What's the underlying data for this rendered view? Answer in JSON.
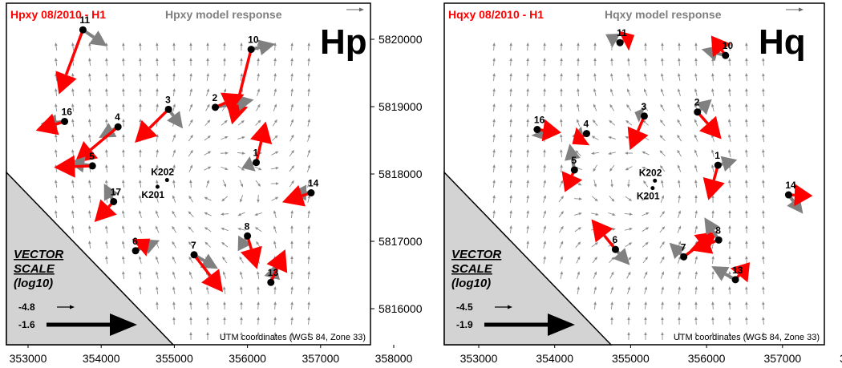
{
  "panels": [
    {
      "title_measured": "Hpxy 08/2010 - H1",
      "title_model": "Hpxy model response",
      "big_label": "Hp",
      "scale_title": [
        "VECTOR",
        "SCALE",
        "(log10)"
      ],
      "scale_small": "-4.8",
      "scale_large": "-1.6",
      "footer": "UTM coordinates (WGS 84, Zone 33)",
      "x_ticks": [
        "353000",
        "354000",
        "355000",
        "356000",
        "357000",
        "358000"
      ],
      "stations": [
        {
          "id": "11",
          "x": 353750,
          "y": 5820140
        },
        {
          "id": "10",
          "x": 356050,
          "y": 5819850
        },
        {
          "id": "16",
          "x": 353500,
          "y": 5818780
        },
        {
          "id": "4",
          "x": 354230,
          "y": 5818700
        },
        {
          "id": "3",
          "x": 354920,
          "y": 5818960
        },
        {
          "id": "2",
          "x": 355560,
          "y": 5818990
        },
        {
          "id": "1",
          "x": 356120,
          "y": 5818170
        },
        {
          "id": "5",
          "x": 353880,
          "y": 5818120
        },
        {
          "id": "17",
          "x": 354170,
          "y": 5817590
        },
        {
          "id": "14",
          "x": 356870,
          "y": 5817720
        },
        {
          "id": "6",
          "x": 354470,
          "y": 5816860
        },
        {
          "id": "7",
          "x": 355270,
          "y": 5816800
        },
        {
          "id": "8",
          "x": 356000,
          "y": 5817080
        },
        {
          "id": "13",
          "x": 356320,
          "y": 5816390
        },
        {
          "id": "K202",
          "x": 354900,
          "y": 5817910
        },
        {
          "id": "K201",
          "x": 354770,
          "y": 5817810
        }
      ]
    },
    {
      "title_measured": "Hqxy 08/2010 - H1",
      "title_model": "Hqxy model response",
      "big_label": "Hq",
      "scale_title": [
        "VECTOR",
        "SCALE",
        "(log10)"
      ],
      "scale_small": "-4.5",
      "scale_large": "-1.9",
      "footer": "UTM coordinates (WGS 84, Zone 33)",
      "x_ticks": [
        "353000",
        "354000",
        "355000",
        "356000",
        "357000",
        "358000"
      ],
      "stations": [
        {
          "id": "11",
          "x": 354860,
          "y": 5819950
        },
        {
          "id": "10",
          "x": 356250,
          "y": 5819760
        },
        {
          "id": "16",
          "x": 353770,
          "y": 5818660
        },
        {
          "id": "4",
          "x": 354420,
          "y": 5818600
        },
        {
          "id": "3",
          "x": 355180,
          "y": 5818860
        },
        {
          "id": "2",
          "x": 355880,
          "y": 5818920
        },
        {
          "id": "1",
          "x": 356150,
          "y": 5818130
        },
        {
          "id": "5",
          "x": 354260,
          "y": 5818060
        },
        {
          "id": "14",
          "x": 357080,
          "y": 5817690
        },
        {
          "id": "6",
          "x": 354800,
          "y": 5816880
        },
        {
          "id": "7",
          "x": 355700,
          "y": 5816770
        },
        {
          "id": "8",
          "x": 356160,
          "y": 5817020
        },
        {
          "id": "13",
          "x": 356380,
          "y": 5816430
        },
        {
          "id": "K202",
          "x": 355320,
          "y": 5817900
        },
        {
          "id": "K201",
          "x": 355290,
          "y": 5817790
        }
      ]
    }
  ],
  "y_ticks": [
    "5820000",
    "5819000",
    "5818000",
    "5817000",
    "5816000"
  ],
  "arrow_sets": {
    "measured": [
      [
        [
          -0.5,
          1.6,
          0.36
        ],
        [
          -0.4,
          1.9,
          0.25
        ],
        [
          -0.6,
          0.3,
          -0.3
        ],
        [
          -0.9,
          0.9,
          0.2
        ],
        [
          -0.7,
          0.7,
          0.8
        ],
        [
          0.6,
          -0.5,
          0.8
        ],
        [
          0.2,
          -0.9,
          -0.8
        ],
        [
          -0.8,
          0.1,
          -0.3
        ],
        [
          -0.4,
          0.7,
          -0.8
        ],
        [
          -0.6,
          0.1,
          0.7
        ],
        [
          0.3,
          -0.4,
          0.4
        ],
        [
          0.6,
          0.7,
          1.3
        ],
        [
          0.2,
          0.8,
          0.3
        ],
        [
          0.3,
          -0.9,
          0.2
        ]
      ],
      [
        [
          0.3,
          -0.3,
          0.5
        ],
        [
          -0.3,
          -0.6,
          0.4
        ],
        [
          0.5,
          0.1,
          -0.1
        ],
        [
          -0.3,
          0.4,
          -0.6
        ],
        [
          -0.3,
          0.8,
          0.4
        ],
        [
          0.5,
          0.6,
          0.5
        ],
        [
          -0.2,
          0.9,
          0.05
        ],
        [
          -0.2,
          0.7,
          -0.6
        ],
        [
          0.5,
          -0.1,
          0.6
        ],
        [
          -0.5,
          -0.7,
          -0.4
        ],
        [
          0.7,
          -0.6,
          -0.3
        ],
        [
          -0.6,
          0.1,
          0.8
        ],
        [
          0.3,
          -0.6,
          0.7
        ]
      ]
    ],
    "model": [
      [
        [
          0.5,
          0.5,
          0.25
        ],
        [
          0.5,
          -0.3,
          0.4
        ],
        [
          -0.5,
          0.2,
          -0.4
        ],
        [
          -0.4,
          0.3,
          0.3
        ],
        [
          0.3,
          0.5,
          0.6
        ],
        [
          0.8,
          -0.4,
          0.5
        ],
        [
          -0.3,
          0.3,
          -0.4
        ],
        [
          -0.5,
          -0.05,
          -0.3
        ],
        [
          -0.2,
          -0.4,
          -0.8
        ],
        [
          -0.4,
          -0.1,
          0.3
        ],
        [
          0.5,
          -0.5,
          0.5
        ],
        [
          0.5,
          0.4,
          0.3
        ],
        [
          -0.2,
          0.5,
          0.1
        ],
        [
          0.1,
          -0.8,
          0.6
        ]
      ],
      [
        [
          -0.3,
          -0.4,
          0.4
        ],
        [
          -0.5,
          -0.3,
          0.3
        ],
        [
          0.1,
          0.3,
          0.1
        ],
        [
          -0.3,
          0.3,
          -0.7
        ],
        [
          -0.2,
          -0.3,
          0.6
        ],
        [
          0.3,
          -0.5,
          0.2
        ],
        [
          0.4,
          -0.3,
          0.4
        ],
        [
          -0.1,
          -0.8,
          -0.4
        ],
        [
          0.3,
          0.6,
          0.2
        ],
        [
          0.3,
          0.6,
          -0.2
        ],
        [
          -0.3,
          -0.6,
          0.4
        ],
        [
          -0.3,
          -0.7,
          -0.3
        ],
        [
          -0.5,
          -0.3,
          -0.6
        ]
      ]
    ]
  },
  "colors": {
    "measured": "#ff0000",
    "model": "#808080",
    "field": "#8c8c8c",
    "triangle": "#d3d3d3",
    "text": "#000000"
  }
}
